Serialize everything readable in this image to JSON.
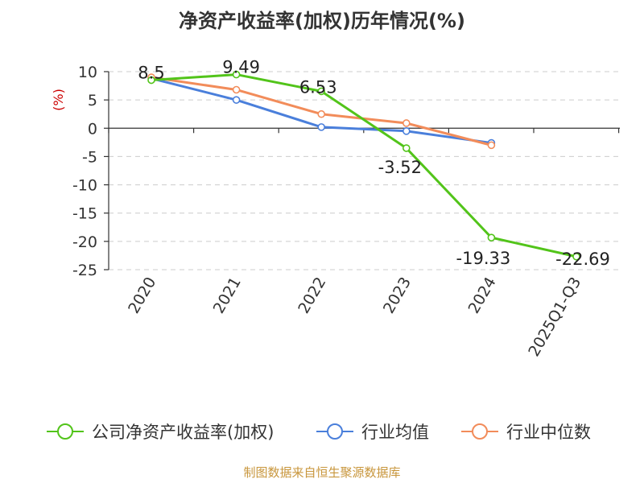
{
  "chart_data": {
    "type": "line",
    "title": "净资产收益率(加权)历年情况(%)",
    "ylabel": "(%)",
    "xlabel": "",
    "categories": [
      "2020",
      "2021",
      "2022",
      "2023",
      "2024",
      "2025Q1-Q3"
    ],
    "ylim": [
      -25,
      10
    ],
    "yticks": [
      10,
      5,
      0,
      -5,
      -10,
      -15,
      -20,
      -25
    ],
    "grid": true,
    "legend_position": "bottom",
    "series": [
      {
        "name": "公司净资产收益率(加权)",
        "color": "#52c41a",
        "labeled": true,
        "values": [
          8.5,
          9.49,
          6.53,
          -3.52,
          -19.33,
          -22.69
        ],
        "labels": [
          "8.5",
          "9.49",
          "6.53",
          "-3.52",
          "-19.33",
          "-22.69"
        ]
      },
      {
        "name": "行业均值",
        "color": "#4a7fdb",
        "labeled": false,
        "values": [
          8.8,
          5.0,
          0.2,
          -0.5,
          -2.6,
          null
        ]
      },
      {
        "name": "行业中位数",
        "color": "#f28c5a",
        "labeled": false,
        "values": [
          9.0,
          6.8,
          2.5,
          0.9,
          -3.0,
          null
        ]
      }
    ]
  },
  "source": "制图数据来自恒生聚源数据库"
}
